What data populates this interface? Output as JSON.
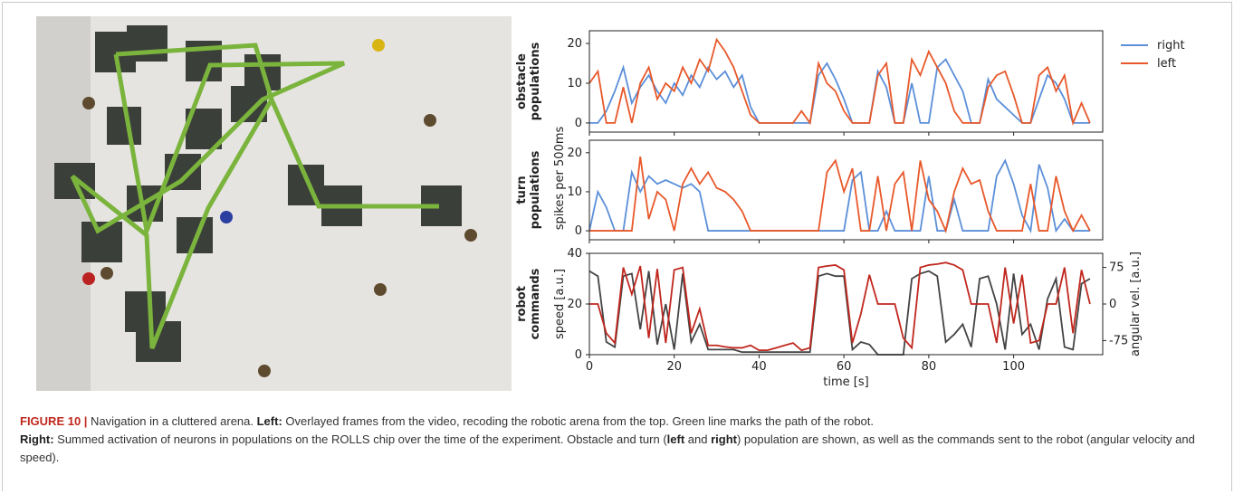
{
  "shared_ylabel": "spikes per 500ms",
  "caption": [
    "FIGURE 10 |",
    " Navigation in a cluttered arena. ",
    "Left:",
    " Overlayed frames from the video, recoding the robotic arena from the top. Green line marks the path of the robot.",
    "Right:",
    " Summed activation of neurons in populations on the ROLLS chip over the time of the experiment. Obstacle and turn (",
    "left",
    " and ",
    "right",
    ") population are shown, as well as the commands sent to the robot (angular velocity and speed)."
  ],
  "chart_data": [
    {
      "type": "line",
      "group_label": [
        "obstacle",
        "populations"
      ],
      "xlim": [
        0,
        121
      ],
      "ylim": [
        -2.3,
        23.2
      ],
      "yticks": [
        0,
        10,
        20
      ],
      "legend": "outside-right",
      "x": [
        0,
        2,
        4,
        6,
        8,
        10,
        12,
        14,
        16,
        18,
        20,
        22,
        24,
        26,
        28,
        30,
        32,
        34,
        36,
        38,
        40,
        42,
        44,
        46,
        48,
        50,
        52,
        54,
        56,
        58,
        60,
        62,
        64,
        66,
        68,
        70,
        72,
        74,
        76,
        78,
        80,
        82,
        84,
        86,
        88,
        90,
        92,
        94,
        96,
        98,
        100,
        102,
        104,
        106,
        108,
        110,
        112,
        114,
        116,
        118
      ],
      "series": [
        {
          "name": "right",
          "color": "#5b8fd9",
          "values": [
            0,
            0,
            3,
            8,
            14,
            5,
            9,
            12,
            8,
            5,
            10,
            7,
            12,
            9,
            14,
            11,
            13,
            9,
            12,
            4,
            0,
            0,
            0,
            0,
            0,
            0,
            0,
            12,
            15,
            11,
            6,
            0,
            0,
            0,
            13,
            9,
            0,
            0,
            10,
            0,
            0,
            14,
            16,
            12,
            8,
            0,
            0,
            11,
            6,
            4,
            2,
            0,
            0,
            6,
            12,
            10,
            6,
            0,
            0,
            0
          ]
        },
        {
          "name": "left",
          "color": "#e8582a",
          "values": [
            10,
            13,
            0,
            0,
            9,
            0,
            10,
            14,
            6,
            10,
            8,
            14,
            10,
            16,
            13,
            21,
            18,
            14,
            8,
            2,
            0,
            0,
            0,
            0,
            0,
            3,
            0,
            15,
            10,
            8,
            3,
            0,
            0,
            0,
            12,
            15,
            0,
            0,
            16,
            12,
            18,
            14,
            10,
            3,
            0,
            0,
            0,
            9,
            12,
            13,
            7,
            0,
            0,
            12,
            14,
            8,
            12,
            0,
            5,
            0
          ]
        }
      ]
    },
    {
      "type": "line",
      "group_label": [
        "turn",
        "populations"
      ],
      "xlim": [
        0,
        121
      ],
      "ylim": [
        -2.3,
        23.2
      ],
      "yticks": [
        0,
        10,
        20
      ],
      "x": [
        0,
        2,
        4,
        6,
        8,
        10,
        12,
        14,
        16,
        18,
        20,
        22,
        24,
        26,
        28,
        30,
        32,
        34,
        36,
        38,
        40,
        42,
        44,
        46,
        48,
        50,
        52,
        54,
        56,
        58,
        60,
        62,
        64,
        66,
        68,
        70,
        72,
        74,
        76,
        78,
        80,
        82,
        84,
        86,
        88,
        90,
        92,
        94,
        96,
        98,
        100,
        102,
        104,
        106,
        108,
        110,
        112,
        114,
        116,
        118
      ],
      "series": [
        {
          "name": "right",
          "color": "#5b8fd9",
          "values": [
            0,
            10,
            6,
            0,
            0,
            15,
            10,
            14,
            12,
            13,
            12,
            11,
            12,
            10,
            0,
            0,
            0,
            0,
            0,
            0,
            0,
            0,
            0,
            0,
            0,
            0,
            0,
            0,
            0,
            0,
            0,
            13,
            15,
            0,
            0,
            5,
            0,
            0,
            0,
            0,
            14,
            0,
            0,
            8,
            0,
            0,
            0,
            0,
            14,
            18,
            12,
            4,
            0,
            17,
            11,
            0,
            3,
            0,
            0,
            0
          ]
        },
        {
          "name": "left",
          "color": "#e8582a",
          "values": [
            0,
            0,
            0,
            0,
            0,
            0,
            19,
            3,
            10,
            8,
            0,
            12,
            16,
            12,
            15,
            11,
            10,
            8,
            5,
            0,
            0,
            0,
            0,
            0,
            0,
            0,
            0,
            0,
            15,
            18,
            10,
            16,
            0,
            0,
            14,
            0,
            12,
            15,
            0,
            18,
            8,
            5,
            0,
            10,
            16,
            12,
            13,
            5,
            0,
            0,
            0,
            0,
            12,
            0,
            0,
            14,
            5,
            0,
            4,
            0
          ]
        }
      ]
    },
    {
      "type": "line",
      "group_label": [
        "robot",
        "commands"
      ],
      "xlim": [
        0,
        121
      ],
      "ylim": [
        0,
        40
      ],
      "yticks": [
        0,
        20,
        40
      ],
      "y2lim": [
        -104,
        104
      ],
      "y2ticks": [
        -75,
        0,
        75
      ],
      "xticks": [
        0,
        20,
        40,
        60,
        80,
        100
      ],
      "xlabel": "time [s]",
      "ylabel": "speed [a.u.]",
      "y2label": "angular vel. [a.u.]",
      "x": [
        0,
        2,
        4,
        6,
        8,
        10,
        12,
        14,
        16,
        18,
        20,
        22,
        24,
        26,
        28,
        30,
        32,
        34,
        36,
        38,
        40,
        42,
        44,
        46,
        48,
        50,
        52,
        54,
        56,
        58,
        60,
        62,
        64,
        66,
        68,
        70,
        72,
        74,
        76,
        78,
        80,
        82,
        84,
        86,
        88,
        90,
        92,
        94,
        96,
        98,
        100,
        102,
        104,
        106,
        108,
        110,
        112,
        114,
        116,
        118
      ],
      "series": [
        {
          "name": "speed",
          "color": "#444444",
          "values": [
            33,
            31,
            5,
            3,
            31,
            32,
            10,
            33,
            4,
            20,
            2,
            32,
            5,
            12,
            2,
            2,
            2,
            2,
            1,
            1,
            1,
            1,
            1,
            1,
            1,
            1,
            1,
            31,
            32,
            31,
            31,
            2,
            5,
            4,
            0,
            0,
            0,
            0,
            30,
            32,
            33,
            31,
            5,
            8,
            12,
            3,
            30,
            31,
            20,
            2,
            32,
            8,
            12,
            2,
            22,
            30,
            3,
            2,
            28,
            30
          ]
        },
        {
          "name": "angular vel.",
          "color": "#c0271e",
          "axis": "y2",
          "values": [
            0,
            0,
            -60,
            -80,
            75,
            20,
            78,
            -70,
            72,
            -80,
            70,
            75,
            -60,
            -10,
            -85,
            -85,
            -88,
            -90,
            -90,
            -85,
            -95,
            -95,
            -90,
            -85,
            -80,
            -95,
            -90,
            75,
            78,
            80,
            70,
            -80,
            -20,
            60,
            0,
            0,
            0,
            -70,
            -90,
            75,
            80,
            82,
            85,
            80,
            70,
            0,
            0,
            0,
            -80,
            75,
            -40,
            60,
            -80,
            -75,
            0,
            0,
            75,
            -60,
            70,
            0
          ]
        }
      ]
    }
  ]
}
